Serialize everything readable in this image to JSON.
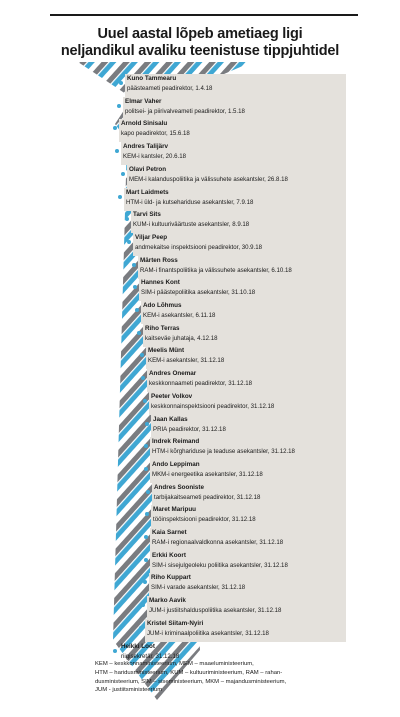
{
  "title_line1": "Uuel aastal lõpeb ametiaeg ligi",
  "title_line2": "neljandikul avaliku teenistuse tippjuhtidel",
  "colors": {
    "stripe_blue": "#3fa7d3",
    "stripe_grey": "#7a7c80",
    "row_bg": "#e4e1dc",
    "dot": "#3fa7d3"
  },
  "officials": [
    {
      "name": "Kuno Tammearu",
      "role": "päästeameti peadirektor, 1.4.18"
    },
    {
      "name": "Elmar Vaher",
      "role": "politsei- ja piirivalveameti peadirektor, 1.5.18"
    },
    {
      "name": "Arnold Sinisalu",
      "role": "kapo peadirektor, 15.6.18"
    },
    {
      "name": "Andres Talijärv",
      "role": "KEM-i kantsler, 20.6.18"
    },
    {
      "name": "Olavi Petron",
      "role": "MEM-i kalanduspoliitika ja välissuhete asekantsler, 26.8.18"
    },
    {
      "name": "Mart Laidmets",
      "role": "HTM-i üld- ja kutsehariduse asekantsler, 7.9.18"
    },
    {
      "name": "Tarvi Sits",
      "role": "KUM-i kultuuriväärtuste asekantsler, 8.9.18"
    },
    {
      "name": "Viljar Peep",
      "role": "andmekaitse inspektsiooni peadirektor, 30.9.18"
    },
    {
      "name": "Märten Ross",
      "role": "RAM-i finantspoliitika ja välissuhete asekantsler, 6.10.18"
    },
    {
      "name": "Hannes Kont",
      "role": "SIM-i päästepoliitika asekantsler, 31.10.18"
    },
    {
      "name": "Ado Lõhmus",
      "role": "KEM-i asekantsler, 6.11.18"
    },
    {
      "name": "Riho Terras",
      "role": "kaitseväe juhataja, 4.12.18"
    },
    {
      "name": "Meelis Münt",
      "role": "KEM-i asekantsler, 31.12.18"
    },
    {
      "name": "Andres Onemar",
      "role": "keskkonnaameti peadirektor, 31.12.18"
    },
    {
      "name": "Peeter Volkov",
      "role": "keskkonnainspektsiooni peadirektor, 31.12.18"
    },
    {
      "name": "Jaan Kallas",
      "role": "PRIA peadirektor, 31.12.18"
    },
    {
      "name": "Indrek Reimand",
      "role": "HTM-i kõrghariduse ja teaduse asekantsler, 31.12.18"
    },
    {
      "name": "Ando Leppiman",
      "role": "MKM-i energeetika asekantsler, 31.12.18"
    },
    {
      "name": "Andres Sooniste",
      "role": "tarbijakaitseameti peadirektor, 31.12.18"
    },
    {
      "name": "Maret Maripuu",
      "role": "tööinspektsiooni peadirektor, 31.12.18"
    },
    {
      "name": "Kaia Sarnet",
      "role": "RAM-i regionaalvaldkonna asekantsler, 31.12.18"
    },
    {
      "name": "Erkki Koort",
      "role": "SIM-i sisejulgeoleku poliitika asekantsler, 31.12.18"
    },
    {
      "name": "Riho Kuppart",
      "role": "SIM-i varade asekantsler, 31.12.18"
    },
    {
      "name": "Marko Aavik",
      "role": "JUM-i justiitshalduspoliitika asekantsler, 31.12.18"
    },
    {
      "name": "Kristel Siitam-Nyiri",
      "role": "JUM-i kriminaalpoliitika asekantsler, 31.12.18"
    },
    {
      "name": "Heikki Loot",
      "role": "riigisekretär, 31.12.18"
    }
  ],
  "footer_lines": [
    "KEM – keskkonnaministeerium, MEM – maaeluministeerium,",
    "HTM – haridusministeerium, KUM – kultuuriministeerium, RAM – rahan-",
    "dusministeerium, SIM – siseministeerium, MKM – majandusministeerium,",
    "JUM - justiitsministeerium"
  ]
}
